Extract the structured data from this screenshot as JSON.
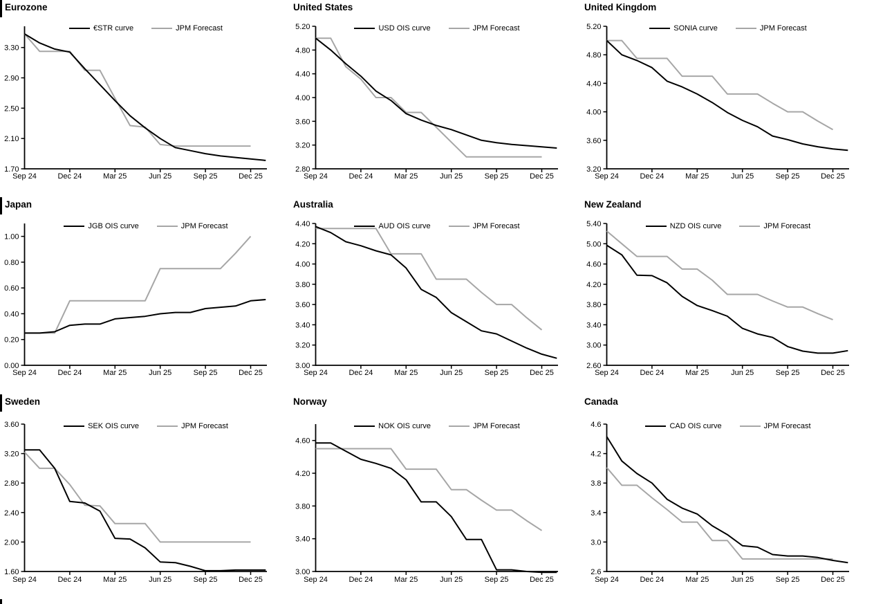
{
  "legend_forecast_label": "JPM Forecast",
  "colors": {
    "curve": "#000000",
    "forecast": "#a6a6a6",
    "axis": "#000000"
  },
  "x_tick_labels": [
    "Sep 24",
    "Dec 24",
    "Mar 25",
    "Jun 25",
    "Sep 25",
    "Dec 25"
  ],
  "chart_data": [
    {
      "type": "line",
      "region": "Eurozone",
      "x": [
        "Sep 24",
        "Dec 24",
        "Mar 25",
        "Jun 25",
        "Sep 25",
        "Dec 25"
      ],
      "x_tick_interval_months": 3,
      "x_frequency": "monthly",
      "legend_position": "top",
      "grid": false,
      "yticks": [
        "1.70",
        "2.10",
        "2.50",
        "2.90",
        "3.30"
      ],
      "ylim": [
        1.7,
        3.58
      ],
      "series": [
        {
          "name": "€STR curve",
          "color": "#000000",
          "values": [
            3.48,
            3.36,
            3.28,
            3.24,
            3.02,
            2.81,
            2.6,
            2.4,
            2.24,
            2.1,
            1.98,
            1.94,
            1.9,
            1.87,
            1.85,
            1.83,
            1.81
          ]
        },
        {
          "name": "JPM Forecast",
          "color": "#a6a6a6",
          "values": [
            3.48,
            3.25,
            3.25,
            3.25,
            3.0,
            3.0,
            2.63,
            2.27,
            2.25,
            2.02,
            2.0,
            2.0,
            2.0,
            2.0,
            2.0,
            2.0
          ]
        }
      ]
    },
    {
      "type": "line",
      "region": "United States",
      "x": [
        "Sep 24",
        "Dec 24",
        "Mar 25",
        "Jun 25",
        "Sep 25",
        "Dec 25"
      ],
      "x_tick_interval_months": 3,
      "x_frequency": "monthly",
      "legend_position": "top",
      "grid": false,
      "yticks": [
        "2.80",
        "3.20",
        "3.60",
        "4.00",
        "4.40",
        "4.80",
        "5.20"
      ],
      "ylim": [
        2.8,
        5.2
      ],
      "series": [
        {
          "name": "USD OIS curve",
          "color": "#000000",
          "values": [
            5.0,
            4.8,
            4.57,
            4.36,
            4.11,
            3.95,
            3.73,
            3.62,
            3.53,
            3.46,
            3.37,
            3.28,
            3.24,
            3.21,
            3.19,
            3.17,
            3.15
          ]
        },
        {
          "name": "JPM Forecast",
          "color": "#a6a6a6",
          "values": [
            5.0,
            5.0,
            4.52,
            4.31,
            4.0,
            4.0,
            3.75,
            3.75,
            3.5,
            3.25,
            3.0,
            3.0,
            3.0,
            3.0,
            3.0,
            3.0
          ]
        }
      ]
    },
    {
      "type": "line",
      "region": "United Kingdom",
      "x": [
        "Sep 24",
        "Dec 24",
        "Mar 25",
        "Jun 25",
        "Sep 25",
        "Dec 25"
      ],
      "x_tick_interval_months": 3,
      "x_frequency": "monthly",
      "legend_position": "top",
      "grid": false,
      "yticks": [
        "3.20",
        "3.60",
        "4.00",
        "4.40",
        "4.80",
        "5.20"
      ],
      "ylim": [
        3.2,
        5.2
      ],
      "series": [
        {
          "name": "SONIA curve",
          "color": "#000000",
          "values": [
            5.0,
            4.8,
            4.72,
            4.62,
            4.43,
            4.35,
            4.25,
            4.13,
            3.99,
            3.88,
            3.79,
            3.66,
            3.61,
            3.55,
            3.51,
            3.48,
            3.46
          ]
        },
        {
          "name": "JPM Forecast",
          "color": "#a6a6a6",
          "values": [
            5.0,
            5.0,
            4.75,
            4.75,
            4.75,
            4.5,
            4.5,
            4.5,
            4.25,
            4.25,
            4.25,
            4.12,
            4.0,
            4.0,
            3.87,
            3.75
          ]
        }
      ]
    },
    {
      "type": "line",
      "region": "Japan",
      "x": [
        "Sep 24",
        "Dec 24",
        "Mar 25",
        "Jun 25",
        "Sep 25",
        "Dec 25"
      ],
      "x_tick_interval_months": 3,
      "x_frequency": "monthly",
      "legend_position": "top",
      "grid": false,
      "yticks": [
        "0.00",
        "0.20",
        "0.40",
        "0.60",
        "0.80",
        "1.00"
      ],
      "ylim": [
        0.0,
        1.1
      ],
      "series": [
        {
          "name": "JGB OIS curve",
          "color": "#000000",
          "values": [
            0.25,
            0.25,
            0.26,
            0.31,
            0.32,
            0.32,
            0.36,
            0.37,
            0.38,
            0.4,
            0.41,
            0.41,
            0.44,
            0.45,
            0.46,
            0.5,
            0.51
          ]
        },
        {
          "name": "JPM Forecast",
          "color": "#a6a6a6",
          "values": [
            0.25,
            0.25,
            0.25,
            0.5,
            0.5,
            0.5,
            0.5,
            0.5,
            0.5,
            0.75,
            0.75,
            0.75,
            0.75,
            0.75,
            0.87,
            1.0
          ]
        }
      ]
    },
    {
      "type": "line",
      "region": "Australia",
      "x": [
        "Sep 24",
        "Dec 24",
        "Mar 25",
        "Jun 25",
        "Sep 25",
        "Dec 25"
      ],
      "x_tick_interval_months": 3,
      "x_frequency": "monthly",
      "legend_position": "top",
      "grid": false,
      "yticks": [
        "3.00",
        "3.20",
        "3.40",
        "3.60",
        "3.80",
        "4.00",
        "4.20",
        "4.40"
      ],
      "ylim": [
        3.0,
        4.4
      ],
      "series": [
        {
          "name": "AUD OIS curve",
          "color": "#000000",
          "values": [
            4.37,
            4.31,
            4.22,
            4.18,
            4.13,
            4.09,
            3.96,
            3.75,
            3.67,
            3.52,
            3.43,
            3.34,
            3.31,
            3.24,
            3.17,
            3.11,
            3.07
          ]
        },
        {
          "name": "JPM Forecast",
          "color": "#a6a6a6",
          "values": [
            4.35,
            4.35,
            4.35,
            4.35,
            4.35,
            4.1,
            4.1,
            4.1,
            3.85,
            3.85,
            3.85,
            3.72,
            3.6,
            3.6,
            3.47,
            3.35
          ]
        }
      ]
    },
    {
      "type": "line",
      "region": "New Zealand",
      "x": [
        "Sep 24",
        "Dec 24",
        "Mar 25",
        "Jun 25",
        "Sep 25",
        "Dec 25"
      ],
      "x_tick_interval_months": 3,
      "x_frequency": "monthly",
      "legend_position": "top",
      "grid": false,
      "yticks": [
        "2.60",
        "3.00",
        "3.40",
        "3.80",
        "4.20",
        "4.60",
        "5.00",
        "5.40"
      ],
      "ylim": [
        2.6,
        5.4
      ],
      "series": [
        {
          "name": "NZD OIS curve",
          "color": "#000000",
          "values": [
            4.97,
            4.78,
            4.38,
            4.37,
            4.23,
            3.96,
            3.78,
            3.68,
            3.57,
            3.33,
            3.22,
            3.15,
            2.97,
            2.88,
            2.84,
            2.84,
            2.89
          ]
        },
        {
          "name": "JPM Forecast",
          "color": "#a6a6a6",
          "values": [
            5.25,
            5.0,
            4.75,
            4.75,
            4.75,
            4.5,
            4.5,
            4.28,
            4.0,
            4.0,
            4.0,
            3.87,
            3.75,
            3.75,
            3.62,
            3.5
          ]
        }
      ]
    },
    {
      "type": "line",
      "region": "Sweden",
      "x": [
        "Sep 24",
        "Dec 24",
        "Mar 25",
        "Jun 25",
        "Sep 25",
        "Dec 25"
      ],
      "x_tick_interval_months": 3,
      "x_frequency": "monthly",
      "legend_position": "top",
      "grid": false,
      "yticks": [
        "1.60",
        "2.00",
        "2.40",
        "2.80",
        "3.20",
        "3.60"
      ],
      "ylim": [
        1.6,
        3.6
      ],
      "series": [
        {
          "name": "SEK OIS curve",
          "color": "#000000",
          "values": [
            3.25,
            3.25,
            3.0,
            2.55,
            2.53,
            2.42,
            2.05,
            2.04,
            1.92,
            1.73,
            1.72,
            1.67,
            1.61,
            1.61,
            1.62,
            1.62,
            1.62
          ]
        },
        {
          "name": "JPM Forecast",
          "color": "#a6a6a6",
          "values": [
            3.22,
            3.0,
            3.0,
            2.78,
            2.5,
            2.49,
            2.25,
            2.25,
            2.25,
            2.0,
            2.0,
            2.0,
            2.0,
            2.0,
            2.0,
            2.0
          ]
        }
      ]
    },
    {
      "type": "line",
      "region": "Norway",
      "x": [
        "Sep 24",
        "Dec 24",
        "Mar 25",
        "Jun 25",
        "Sep 25",
        "Dec 25"
      ],
      "x_tick_interval_months": 3,
      "x_frequency": "monthly",
      "legend_position": "top",
      "grid": false,
      "yticks": [
        "3.00",
        "3.40",
        "3.80",
        "4.20",
        "4.60"
      ],
      "ylim": [
        3.0,
        4.8
      ],
      "series": [
        {
          "name": "NOK OIS curve",
          "color": "#000000",
          "values": [
            4.57,
            4.57,
            4.47,
            4.37,
            4.32,
            4.26,
            4.12,
            3.85,
            3.85,
            3.67,
            3.39,
            3.39,
            3.02,
            3.02,
            3.0,
            2.99,
            2.99
          ]
        },
        {
          "name": "JPM Forecast",
          "color": "#a6a6a6",
          "values": [
            4.5,
            4.5,
            4.5,
            4.5,
            4.5,
            4.5,
            4.25,
            4.25,
            4.25,
            4.0,
            4.0,
            3.87,
            3.75,
            3.75,
            3.62,
            3.5
          ]
        }
      ]
    },
    {
      "type": "line",
      "region": "Canada",
      "x": [
        "Sep 24",
        "Dec 24",
        "Mar 25",
        "Jun 25",
        "Sep 25",
        "Dec 25"
      ],
      "x_tick_interval_months": 3,
      "x_frequency": "monthly",
      "legend_position": "top",
      "grid": false,
      "yticks": [
        "2.6",
        "3.0",
        "3.4",
        "3.8",
        "4.2",
        "4.6"
      ],
      "ylim": [
        2.6,
        4.6
      ],
      "series": [
        {
          "name": "CAD OIS curve",
          "color": "#000000",
          "values": [
            4.43,
            4.1,
            3.93,
            3.8,
            3.58,
            3.46,
            3.38,
            3.22,
            3.1,
            2.95,
            2.93,
            2.83,
            2.81,
            2.81,
            2.79,
            2.75,
            2.72
          ]
        },
        {
          "name": "JPM Forecast",
          "color": "#a6a6a6",
          "values": [
            4.01,
            3.77,
            3.77,
            3.6,
            3.44,
            3.27,
            3.27,
            3.02,
            3.02,
            2.77,
            2.77,
            2.77,
            2.77,
            2.77,
            2.77,
            2.77
          ]
        }
      ]
    }
  ]
}
